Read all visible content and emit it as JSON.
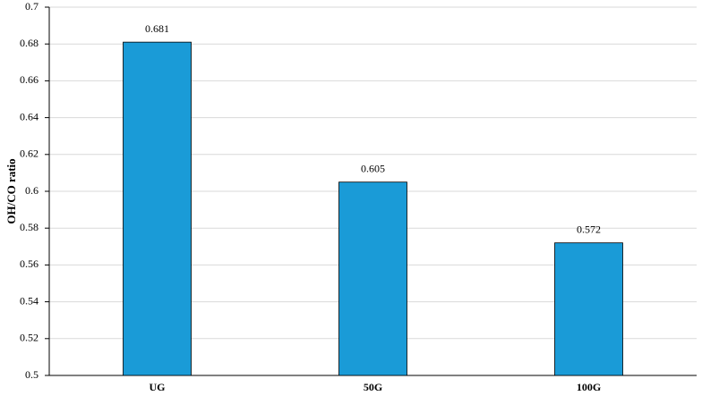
{
  "chart_data": {
    "type": "bar",
    "y_label": "OH/CO ratio",
    "categories": [
      "UG",
      "50G",
      "100G"
    ],
    "values": [
      0.681,
      0.605,
      0.572
    ],
    "color": "#1a9bd7",
    "ylim": [
      0.5,
      0.7
    ],
    "yticks": [
      0.5,
      0.52,
      0.54,
      0.56,
      0.58,
      0.6,
      0.62,
      0.64,
      0.66,
      0.68,
      0.7
    ],
    "grid": true
  }
}
